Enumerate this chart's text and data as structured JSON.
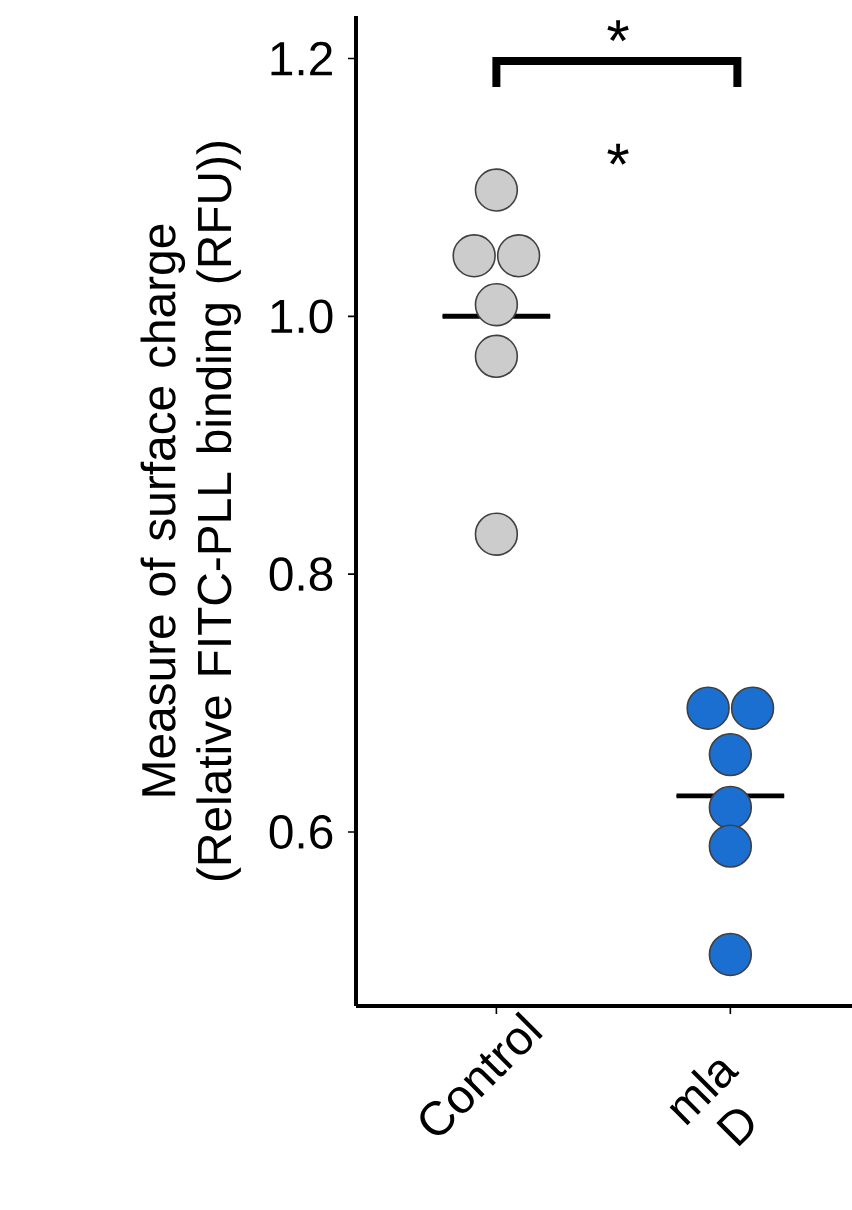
{
  "chart_data": {
    "type": "scatter",
    "ylabel": "Measure of surface charge (Relative FITC-PLL binding (RFU))",
    "categories": [
      "Control",
      "mla D"
    ],
    "series": [
      {
        "type": "box",
        "color": "#000000",
        "boxes": [
          {
            "low": 1.0,
            "q1": 1.0,
            "median": 1.0,
            "q3": 1.0,
            "high": 1.0
          },
          {
            "low": 0.628,
            "q1": 0.628,
            "median": 0.628,
            "q3": 0.628,
            "high": 0.628
          }
        ]
      },
      {
        "color": "#cccccc",
        "x": [
          "Control",
          "Control",
          "Control",
          "Control",
          "Control",
          "Control"
        ],
        "values": [
          1.098,
          1.047,
          1.047,
          1.009,
          0.969,
          0.831
        ]
      },
      {
        "color": "#1a6fd0",
        "x": [
          "mla D",
          "mla D",
          "mla D",
          "mla D",
          "mla D",
          "mla D"
        ],
        "values": [
          0.696,
          0.696,
          0.66,
          0.619,
          0.589,
          0.505
        ]
      }
    ],
    "marker": "circle",
    "ylim": [
      0.465,
      1.233
    ],
    "yticks": [
      0.6,
      0.8,
      {
        "value": 1.0,
        "label": "1.0"
      },
      1.2
    ],
    "annotations": [
      "*",
      "*"
    ]
  }
}
